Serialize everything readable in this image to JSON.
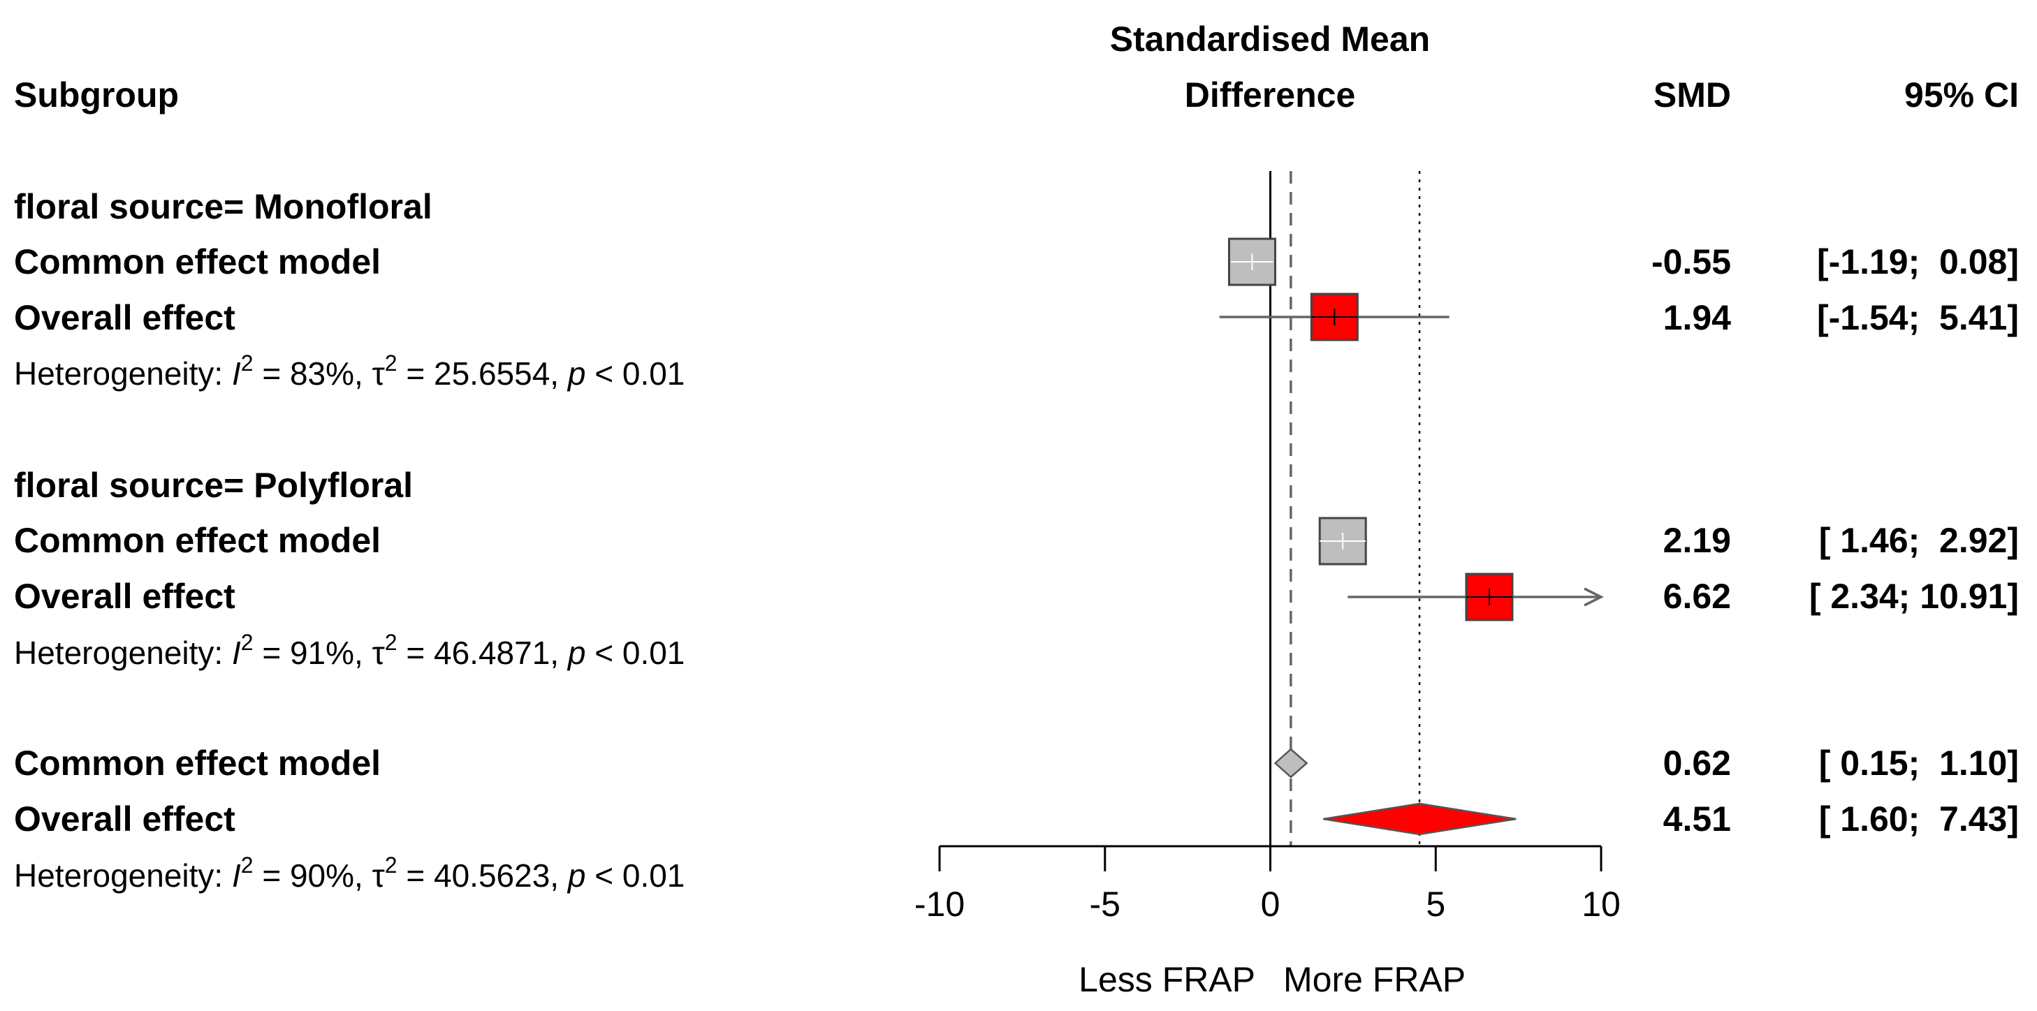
{
  "chart_data": {
    "type": "forest",
    "headers": {
      "subgroup": "Subgroup",
      "plot_title_line1": "Standardised Mean",
      "plot_title_line2": "Difference",
      "smd": "SMD",
      "ci": "95% CI"
    },
    "colors": {
      "common_fill": "#bebebe",
      "random_fill": "#ff0000",
      "ci_line": "#666666",
      "common_ref_line": "#666666",
      "random_ref_line": "#000000",
      "axis": "#000000"
    },
    "groups": [
      {
        "label": "floral source= Monofloral",
        "common": {
          "label": "Common effect model",
          "smd": -0.55,
          "lower": -1.19,
          "upper": 0.08,
          "smd_text": "-0.55",
          "ci_text": "[-1.19;  0.08]"
        },
        "random": {
          "label": "Overall effect",
          "smd": 1.94,
          "lower": -1.54,
          "upper": 5.41,
          "smd_text": "1.94",
          "ci_text": "[-1.54;  5.41]"
        },
        "heterogeneity": {
          "prefix": "Heterogeneity: ",
          "I2_symbol": "I",
          "I2_text": " = 83%, ",
          "tau_symbol": "τ",
          "tau_text": " = 25.6554, ",
          "p_symbol": "p",
          "p_text": " < 0.01",
          "superscript": "2"
        }
      },
      {
        "label": "floral source= Polyfloral",
        "common": {
          "label": "Common effect model",
          "smd": 2.19,
          "lower": 1.46,
          "upper": 2.92,
          "smd_text": "2.19",
          "ci_text": "[ 1.46;  2.92]"
        },
        "random": {
          "label": "Overall effect",
          "smd": 6.62,
          "lower": 2.34,
          "upper": 10.91,
          "smd_text": "6.62",
          "ci_text": "[ 2.34; 10.91]"
        },
        "heterogeneity": {
          "prefix": "Heterogeneity: ",
          "I2_symbol": "I",
          "I2_text": " = 91%, ",
          "tau_symbol": "τ",
          "tau_text": " = 46.4871, ",
          "p_symbol": "p",
          "p_text": " < 0.01",
          "superscript": "2"
        }
      }
    ],
    "overall": {
      "common": {
        "label": "Common effect model",
        "smd": 0.62,
        "lower": 0.15,
        "upper": 1.1,
        "smd_text": "0.62",
        "ci_text": "[ 0.15;  1.10]"
      },
      "random": {
        "label": "Overall effect",
        "smd": 4.51,
        "lower": 1.6,
        "upper": 7.43,
        "smd_text": "4.51",
        "ci_text": "[ 1.60;  7.43]"
      },
      "heterogeneity": {
        "prefix": "Heterogeneity: ",
        "I2_symbol": "I",
        "I2_text": " = 90%, ",
        "tau_symbol": "τ",
        "tau_text": " = 40.5623, ",
        "p_symbol": "p",
        "p_text": " < 0.01",
        "superscript": "2"
      }
    },
    "x_axis": {
      "xlim": [
        -10,
        10
      ],
      "ticks": [
        -10,
        -5,
        0,
        5,
        10
      ],
      "tick_labels": [
        "-10",
        "-5",
        "0",
        "5",
        "10"
      ],
      "label_left": "Less FRAP",
      "label_right": "More FRAP"
    }
  }
}
